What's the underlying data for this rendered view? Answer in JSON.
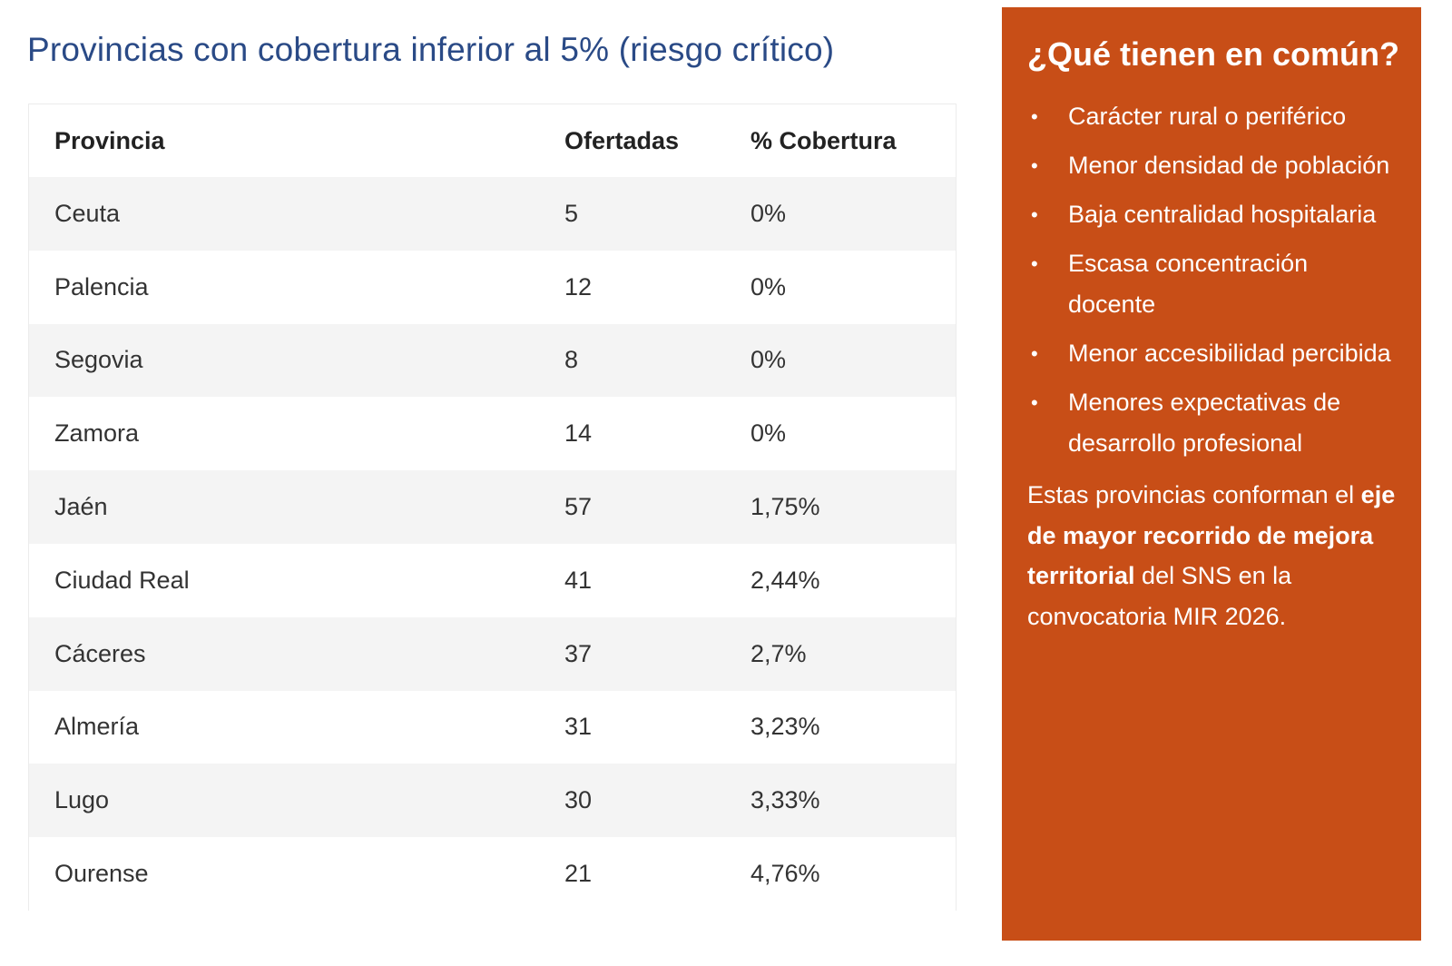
{
  "title": "Provincias con cobertura inferior al 5% (riesgo crítico)",
  "table": {
    "headers": [
      "Provincia",
      "Ofertadas",
      "% Cobertura"
    ],
    "rows": [
      [
        "Ceuta",
        "5",
        "0%"
      ],
      [
        "Palencia",
        "12",
        "0%"
      ],
      [
        "Segovia",
        "8",
        "0%"
      ],
      [
        "Zamora",
        "14",
        "0%"
      ],
      [
        "Jaén",
        "57",
        "1,75%"
      ],
      [
        "Ciudad Real",
        "41",
        "2,44%"
      ],
      [
        "Cáceres",
        "37",
        "2,7%"
      ],
      [
        "Almería",
        "31",
        "3,23%"
      ],
      [
        "Lugo",
        "30",
        "3,33%"
      ],
      [
        "Ourense",
        "21",
        "4,76%"
      ]
    ]
  },
  "aside": {
    "title": "¿Qué tienen en común?",
    "bullet": "•",
    "items": [
      "Carácter rural o periférico",
      "Menor densidad de población",
      "Baja centralidad hospitalaria",
      "Escasa concentración docente",
      "Menor accesibilidad percibida",
      "Menores expectativas de desarrollo profesional"
    ],
    "note": {
      "before": "Estas provincias conforman el ",
      "strong": "eje de mayor recorrido de mejora territorial",
      "after": " del SNS en la convocatoria MIR 2026."
    }
  },
  "colors": {
    "title": "#2a4a86",
    "aside_bg": "#c84e17",
    "row_stripe": "#f4f4f4"
  }
}
